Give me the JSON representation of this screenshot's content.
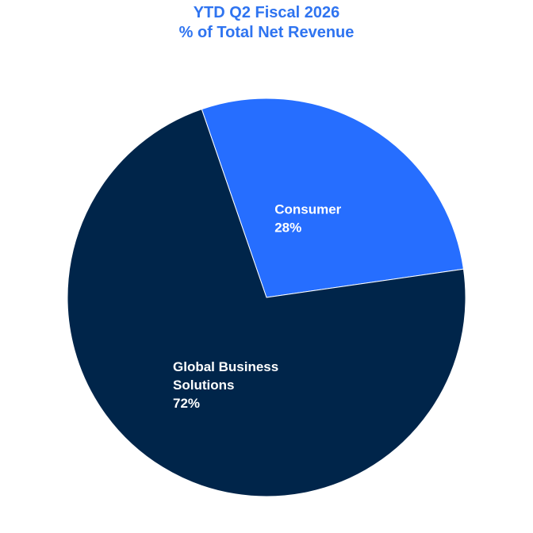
{
  "chart_data": {
    "type": "pie",
    "title": "YTD Q2 Fiscal 2026",
    "subtitle": "% of Total Net Revenue",
    "slices": [
      {
        "label_lines": [
          "Consumer"
        ],
        "value": 28,
        "value_label": "28%",
        "color": "#266eff"
      },
      {
        "label_lines": [
          "Global Business",
          "Solutions"
        ],
        "value": 72,
        "value_label": "72%",
        "color": "#00254a"
      }
    ]
  }
}
